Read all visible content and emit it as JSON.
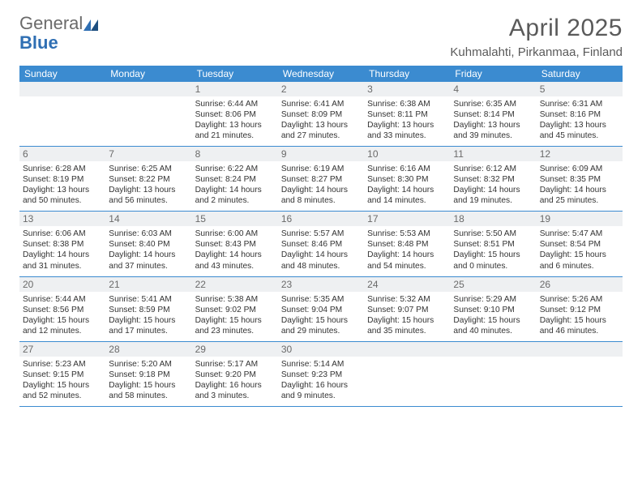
{
  "logo": {
    "text_gray": "General",
    "text_blue": "Blue"
  },
  "title": "April 2025",
  "location": "Kuhmalahti, Pirkanmaa, Finland",
  "colors": {
    "header_bar": "#3b8bd0",
    "daynum_bg": "#eef0f2",
    "rule": "#3b8bd0",
    "text": "#333333",
    "muted": "#6a6a6a"
  },
  "dow": [
    "Sunday",
    "Monday",
    "Tuesday",
    "Wednesday",
    "Thursday",
    "Friday",
    "Saturday"
  ],
  "weeks": [
    [
      {
        "n": "",
        "s": "",
        "ss": "",
        "d": ""
      },
      {
        "n": "",
        "s": "",
        "ss": "",
        "d": ""
      },
      {
        "n": "1",
        "s": "Sunrise: 6:44 AM",
        "ss": "Sunset: 8:06 PM",
        "d": "Daylight: 13 hours and 21 minutes."
      },
      {
        "n": "2",
        "s": "Sunrise: 6:41 AM",
        "ss": "Sunset: 8:09 PM",
        "d": "Daylight: 13 hours and 27 minutes."
      },
      {
        "n": "3",
        "s": "Sunrise: 6:38 AM",
        "ss": "Sunset: 8:11 PM",
        "d": "Daylight: 13 hours and 33 minutes."
      },
      {
        "n": "4",
        "s": "Sunrise: 6:35 AM",
        "ss": "Sunset: 8:14 PM",
        "d": "Daylight: 13 hours and 39 minutes."
      },
      {
        "n": "5",
        "s": "Sunrise: 6:31 AM",
        "ss": "Sunset: 8:16 PM",
        "d": "Daylight: 13 hours and 45 minutes."
      }
    ],
    [
      {
        "n": "6",
        "s": "Sunrise: 6:28 AM",
        "ss": "Sunset: 8:19 PM",
        "d": "Daylight: 13 hours and 50 minutes."
      },
      {
        "n": "7",
        "s": "Sunrise: 6:25 AM",
        "ss": "Sunset: 8:22 PM",
        "d": "Daylight: 13 hours and 56 minutes."
      },
      {
        "n": "8",
        "s": "Sunrise: 6:22 AM",
        "ss": "Sunset: 8:24 PM",
        "d": "Daylight: 14 hours and 2 minutes."
      },
      {
        "n": "9",
        "s": "Sunrise: 6:19 AM",
        "ss": "Sunset: 8:27 PM",
        "d": "Daylight: 14 hours and 8 minutes."
      },
      {
        "n": "10",
        "s": "Sunrise: 6:16 AM",
        "ss": "Sunset: 8:30 PM",
        "d": "Daylight: 14 hours and 14 minutes."
      },
      {
        "n": "11",
        "s": "Sunrise: 6:12 AM",
        "ss": "Sunset: 8:32 PM",
        "d": "Daylight: 14 hours and 19 minutes."
      },
      {
        "n": "12",
        "s": "Sunrise: 6:09 AM",
        "ss": "Sunset: 8:35 PM",
        "d": "Daylight: 14 hours and 25 minutes."
      }
    ],
    [
      {
        "n": "13",
        "s": "Sunrise: 6:06 AM",
        "ss": "Sunset: 8:38 PM",
        "d": "Daylight: 14 hours and 31 minutes."
      },
      {
        "n": "14",
        "s": "Sunrise: 6:03 AM",
        "ss": "Sunset: 8:40 PM",
        "d": "Daylight: 14 hours and 37 minutes."
      },
      {
        "n": "15",
        "s": "Sunrise: 6:00 AM",
        "ss": "Sunset: 8:43 PM",
        "d": "Daylight: 14 hours and 43 minutes."
      },
      {
        "n": "16",
        "s": "Sunrise: 5:57 AM",
        "ss": "Sunset: 8:46 PM",
        "d": "Daylight: 14 hours and 48 minutes."
      },
      {
        "n": "17",
        "s": "Sunrise: 5:53 AM",
        "ss": "Sunset: 8:48 PM",
        "d": "Daylight: 14 hours and 54 minutes."
      },
      {
        "n": "18",
        "s": "Sunrise: 5:50 AM",
        "ss": "Sunset: 8:51 PM",
        "d": "Daylight: 15 hours and 0 minutes."
      },
      {
        "n": "19",
        "s": "Sunrise: 5:47 AM",
        "ss": "Sunset: 8:54 PM",
        "d": "Daylight: 15 hours and 6 minutes."
      }
    ],
    [
      {
        "n": "20",
        "s": "Sunrise: 5:44 AM",
        "ss": "Sunset: 8:56 PM",
        "d": "Daylight: 15 hours and 12 minutes."
      },
      {
        "n": "21",
        "s": "Sunrise: 5:41 AM",
        "ss": "Sunset: 8:59 PM",
        "d": "Daylight: 15 hours and 17 minutes."
      },
      {
        "n": "22",
        "s": "Sunrise: 5:38 AM",
        "ss": "Sunset: 9:02 PM",
        "d": "Daylight: 15 hours and 23 minutes."
      },
      {
        "n": "23",
        "s": "Sunrise: 5:35 AM",
        "ss": "Sunset: 9:04 PM",
        "d": "Daylight: 15 hours and 29 minutes."
      },
      {
        "n": "24",
        "s": "Sunrise: 5:32 AM",
        "ss": "Sunset: 9:07 PM",
        "d": "Daylight: 15 hours and 35 minutes."
      },
      {
        "n": "25",
        "s": "Sunrise: 5:29 AM",
        "ss": "Sunset: 9:10 PM",
        "d": "Daylight: 15 hours and 40 minutes."
      },
      {
        "n": "26",
        "s": "Sunrise: 5:26 AM",
        "ss": "Sunset: 9:12 PM",
        "d": "Daylight: 15 hours and 46 minutes."
      }
    ],
    [
      {
        "n": "27",
        "s": "Sunrise: 5:23 AM",
        "ss": "Sunset: 9:15 PM",
        "d": "Daylight: 15 hours and 52 minutes."
      },
      {
        "n": "28",
        "s": "Sunrise: 5:20 AM",
        "ss": "Sunset: 9:18 PM",
        "d": "Daylight: 15 hours and 58 minutes."
      },
      {
        "n": "29",
        "s": "Sunrise: 5:17 AM",
        "ss": "Sunset: 9:20 PM",
        "d": "Daylight: 16 hours and 3 minutes."
      },
      {
        "n": "30",
        "s": "Sunrise: 5:14 AM",
        "ss": "Sunset: 9:23 PM",
        "d": "Daylight: 16 hours and 9 minutes."
      },
      {
        "n": "",
        "s": "",
        "ss": "",
        "d": ""
      },
      {
        "n": "",
        "s": "",
        "ss": "",
        "d": ""
      },
      {
        "n": "",
        "s": "",
        "ss": "",
        "d": ""
      }
    ]
  ]
}
